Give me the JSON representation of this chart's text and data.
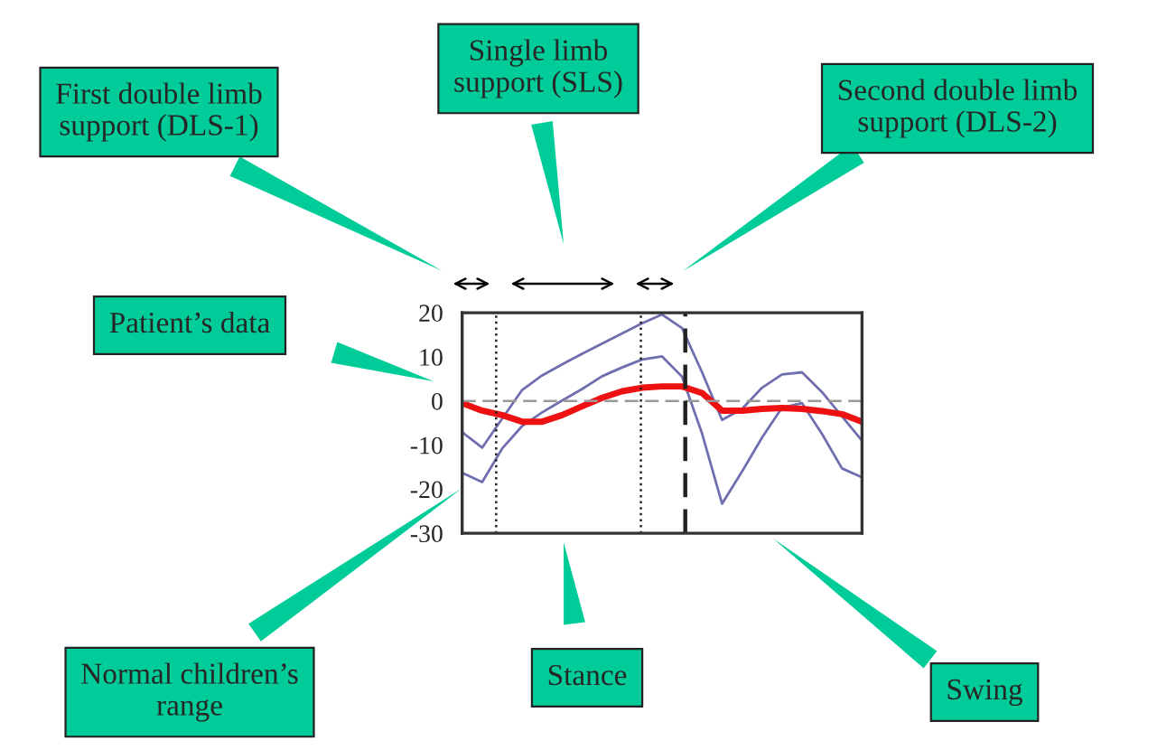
{
  "chart_data": {
    "type": "line",
    "categories": [
      null,
      null,
      null,
      null,
      null,
      null,
      null,
      null,
      null,
      null,
      null,
      null,
      null,
      null,
      null,
      null,
      null,
      null,
      null,
      null,
      null
    ],
    "ylim": [
      -30,
      20
    ],
    "yticks": [
      20,
      10,
      0,
      -10,
      -20,
      -30
    ],
    "tick_labels": "y",
    "series": [
      {
        "color": "#6f6fb0",
        "values": [
          -7.1,
          -10.6,
          -4,
          2.5,
          5.8,
          8.3,
          10.7,
          13,
          15.3,
          17.6,
          19.6,
          16.5,
          6.5,
          -4.3,
          -1.8,
          3,
          6,
          6.5,
          2,
          -3.5,
          -9
        ]
      },
      {
        "color": "#6f6fb0",
        "values": [
          -16.3,
          -18.4,
          -10.8,
          -5.7,
          -2.6,
          0.1,
          2.7,
          5.6,
          7.6,
          9.4,
          10.1,
          5.5,
          -7.4,
          -23.3,
          -16,
          -8.3,
          -1.5,
          -0.5,
          -7.5,
          -15.3,
          -17.3
        ]
      },
      {
        "color": "#ee1111",
        "values": [
          -0.5,
          -2.2,
          -3.2,
          -4.7,
          -4.7,
          -3.2,
          -1.2,
          0.7,
          2.2,
          3,
          3.3,
          3.3,
          1.8,
          -2.2,
          -2.2,
          -1.8,
          -1.6,
          -1.8,
          -2.3,
          -3,
          -4.7
        ]
      }
    ],
    "ref_lines": [
      {
        "axis": "y",
        "value": 0,
        "color": "#999999",
        "line_style": "dashed"
      }
    ],
    "annotations": [
      "First double limb\nsupport (DLS-1)",
      "Single limb\nsupport (SLS)",
      "Second double limb\nsupport (DLS-2)",
      "Patient’s data",
      "Normal children’s\nrange",
      "Stance",
      "Swing"
    ]
  }
}
